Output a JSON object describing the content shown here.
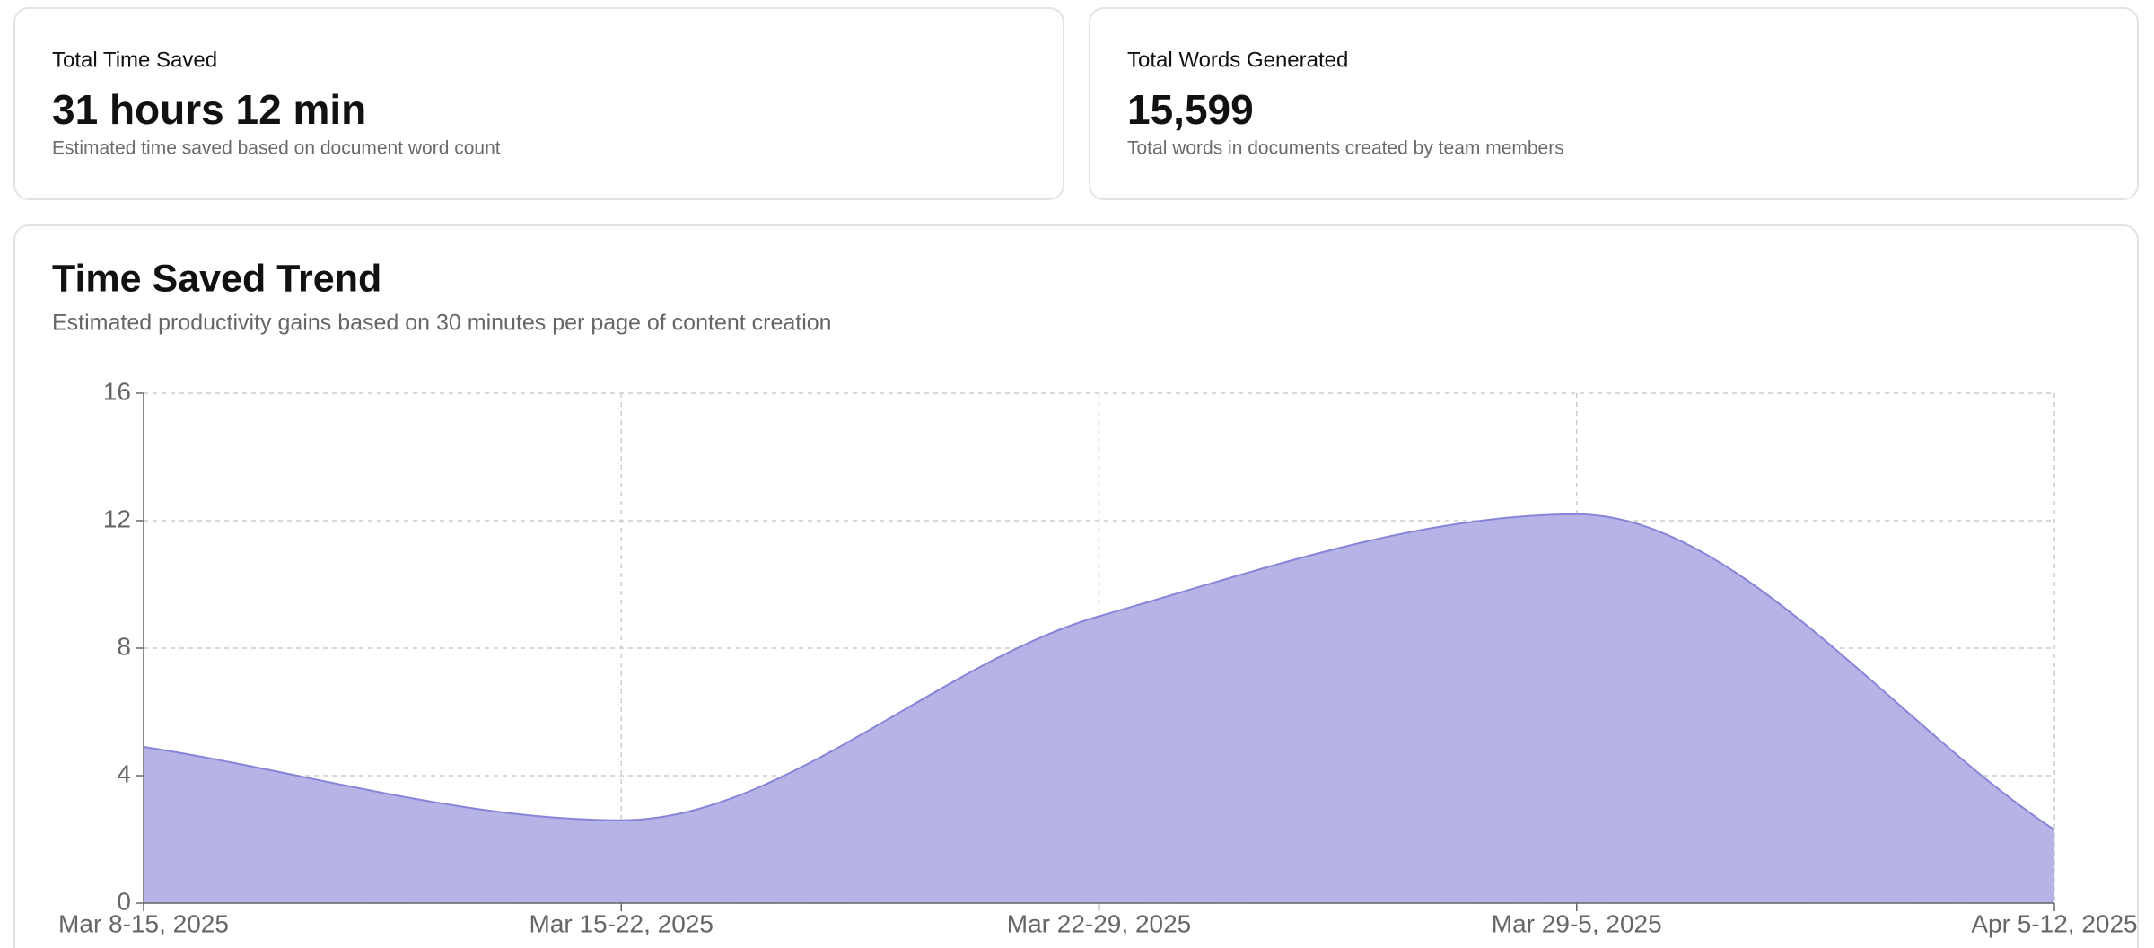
{
  "cards": [
    {
      "label": "Total Time Saved",
      "value": "31 hours 12 min",
      "description": "Estimated time saved based on document word count"
    },
    {
      "label": "Total Words Generated",
      "value": "15,599",
      "description": "Total words in documents created by team members"
    }
  ],
  "chart_data": {
    "type": "area",
    "title": "Time Saved Trend",
    "subtitle": "Estimated productivity gains based on 30 minutes per page of content creation",
    "categories": [
      "Mar 8-15, 2025",
      "Mar 15-22, 2025",
      "Mar 22-29, 2025",
      "Mar 29-5, 2025",
      "Apr 5-12, 2025"
    ],
    "values": [
      4.9,
      2.6,
      9.0,
      12.2,
      2.3
    ],
    "color": "#8884d8",
    "fill": "#b6b3e6",
    "ylim": [
      0,
      16
    ],
    "yticks": [
      0,
      4,
      8,
      12,
      16
    ],
    "grid": true
  }
}
